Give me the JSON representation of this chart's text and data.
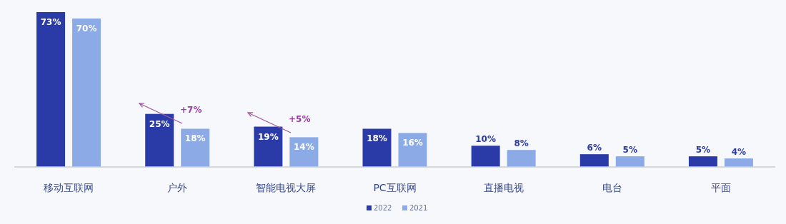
{
  "chart_data": {
    "type": "bar",
    "categories": [
      "移动互联网",
      "户外",
      "智能电视大屏",
      "PC互联网",
      "直播电视",
      "电台",
      "平面"
    ],
    "series": [
      {
        "name": "2022",
        "color": "#2a3aa6",
        "values": [
          73,
          25,
          19,
          18,
          10,
          6,
          5
        ],
        "value_labels": [
          "73%",
          "25%",
          "19%",
          "18%",
          "10%",
          "6%",
          "5%"
        ]
      },
      {
        "name": "2021",
        "color": "#8caae6",
        "values": [
          70,
          18,
          14,
          16,
          8,
          5,
          4
        ],
        "value_labels": [
          "70%",
          "18%",
          "14%",
          "16%",
          "8%",
          "5%",
          "4%"
        ]
      }
    ],
    "annotations": [
      "+7%",
      "+5%"
    ],
    "legend": "bottom"
  }
}
